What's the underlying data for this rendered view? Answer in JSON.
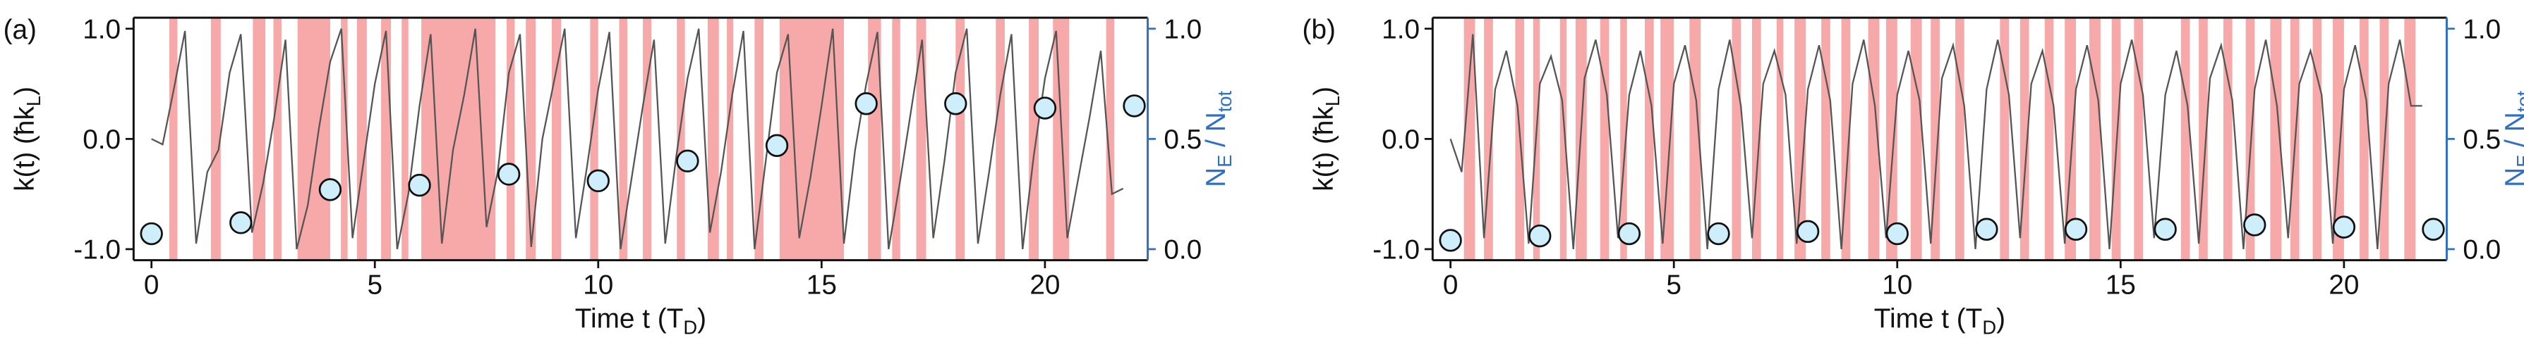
{
  "chart_data": [
    {
      "type": "line",
      "panel_label": "(a)",
      "xlabel": [
        "Time t (T",
        "D",
        ")"
      ],
      "ylabel": [
        "k(t) (ħk",
        "L",
        ")"
      ],
      "y2label": [
        "N",
        "E",
        " / N",
        "tot"
      ],
      "xlim": [
        -0.4,
        22.3
      ],
      "ylim": [
        -1.1,
        1.1
      ],
      "y2lim": [
        -0.05,
        1.05
      ],
      "xticks": [
        0,
        5,
        10,
        15,
        20
      ],
      "yticks": [
        {
          "value": -1,
          "label": "-1.0"
        },
        {
          "value": 0,
          "label": "0.0"
        },
        {
          "value": 1,
          "label": "1.0"
        }
      ],
      "y2ticks": [
        {
          "value": 0,
          "label": "0.0"
        },
        {
          "value": 0.5,
          "label": "0.5"
        },
        {
          "value": 1,
          "label": "1.0"
        }
      ],
      "y2color": "#2f6fc4",
      "shade_color": "#f7a8a8",
      "shaded_intervals": [
        [
          0.4,
          0.58
        ],
        [
          1.33,
          1.55
        ],
        [
          2.27,
          2.55
        ],
        [
          2.73,
          2.91
        ],
        [
          3.27,
          4.0
        ],
        [
          4.24,
          4.39
        ],
        [
          4.6,
          4.82
        ],
        [
          5.14,
          5.36
        ],
        [
          5.6,
          5.75
        ],
        [
          6.04,
          7.7
        ],
        [
          7.95,
          8.13
        ],
        [
          8.38,
          8.6
        ],
        [
          8.96,
          9.17
        ],
        [
          9.82,
          10.0
        ],
        [
          10.47,
          10.65
        ],
        [
          11.0,
          11.19
        ],
        [
          11.76,
          11.94
        ],
        [
          12.45,
          12.7
        ],
        [
          12.88,
          13.02
        ],
        [
          13.5,
          13.7
        ],
        [
          14.06,
          15.5
        ],
        [
          16.04,
          16.33
        ],
        [
          16.58,
          16.76
        ],
        [
          17.12,
          17.34
        ],
        [
          18.0,
          18.2
        ],
        [
          18.9,
          19.1
        ],
        [
          19.64,
          19.86
        ],
        [
          20.18,
          20.54
        ],
        [
          21.37,
          21.55
        ]
      ],
      "series": [
        {
          "type": "line",
          "color": "#555555",
          "x": [
            0,
            0.25,
            0.5,
            0.75,
            1,
            1.25,
            1.5,
            1.75,
            2,
            2.25,
            2.5,
            2.75,
            3,
            3.25,
            3.5,
            3.75,
            4,
            4.25,
            4.5,
            4.75,
            5,
            5.25,
            5.5,
            5.75,
            6,
            6.25,
            6.5,
            6.75,
            7,
            7.25,
            7.5,
            7.75,
            8,
            8.25,
            8.5,
            8.75,
            9,
            9.25,
            9.5,
            9.75,
            10,
            10.25,
            10.5,
            10.75,
            11,
            11.25,
            11.5,
            11.75,
            12,
            12.25,
            12.5,
            12.75,
            13,
            13.25,
            13.5,
            13.75,
            14,
            14.25,
            14.5,
            14.75,
            15,
            15.25,
            15.5,
            15.75,
            16,
            16.25,
            16.5,
            16.75,
            17,
            17.25,
            17.5,
            17.75,
            18,
            18.25,
            18.5,
            18.75,
            19,
            19.25,
            19.5,
            19.75,
            20,
            20.25,
            20.5,
            20.75,
            21,
            21.25,
            21.5,
            21.75
          ],
          "values": [
            0.0,
            -0.05,
            0.45,
            0.98,
            -0.95,
            -0.3,
            -0.1,
            0.6,
            0.95,
            -0.85,
            -0.4,
            0.2,
            0.9,
            -1.0,
            -0.6,
            0.1,
            0.7,
            1.0,
            -0.9,
            -0.2,
            0.5,
            0.98,
            -1.0,
            -0.5,
            0.3,
            0.95,
            -0.95,
            -0.1,
            0.4,
            1.0,
            -0.8,
            -0.3,
            0.6,
            0.95,
            -0.98,
            0.0,
            0.5,
            1.0,
            -0.9,
            -0.25,
            0.45,
            0.97,
            -1.0,
            -0.35,
            0.3,
            0.9,
            -0.95,
            -0.15,
            0.55,
            1.0,
            -0.85,
            -0.3,
            0.4,
            0.98,
            -1.0,
            -0.2,
            0.6,
            0.95,
            -0.9,
            -0.35,
            0.3,
            1.0,
            -0.95,
            -0.1,
            0.5,
            0.97,
            -1.0,
            -0.4,
            0.25,
            0.9,
            -0.9,
            -0.2,
            0.6,
            1.0,
            -0.95,
            -0.3,
            0.4,
            0.95,
            -1.0,
            -0.15,
            0.55,
            0.98,
            -0.9,
            -0.35,
            0.2,
            0.8,
            -0.5,
            -0.45
          ]
        },
        {
          "type": "scatter",
          "axis": "y2",
          "color": "#cdeefa",
          "x": [
            0,
            2,
            4,
            6,
            8,
            10,
            12,
            14,
            16,
            18,
            20,
            22
          ],
          "values": [
            0.07,
            0.12,
            0.27,
            0.29,
            0.34,
            0.31,
            0.4,
            0.47,
            0.66,
            0.66,
            0.64,
            0.65
          ]
        }
      ]
    },
    {
      "type": "line",
      "panel_label": "(b)",
      "xlabel": [
        "Time t (T",
        "D",
        ")"
      ],
      "ylabel": [
        "k(t) (ħk",
        "L",
        ")"
      ],
      "y2label": [
        "N",
        "E",
        " / N",
        "tot"
      ],
      "xlim": [
        -0.4,
        22.3
      ],
      "ylim": [
        -1.1,
        1.1
      ],
      "y2lim": [
        -0.05,
        1.05
      ],
      "xticks": [
        0,
        5,
        10,
        15,
        20
      ],
      "yticks": [
        {
          "value": -1,
          "label": "-1.0"
        },
        {
          "value": 0,
          "label": "0.0"
        },
        {
          "value": 1,
          "label": "1.0"
        }
      ],
      "y2ticks": [
        {
          "value": 0,
          "label": "0.0"
        },
        {
          "value": 0.5,
          "label": "0.5"
        },
        {
          "value": 1,
          "label": "1.0"
        }
      ],
      "y2color": "#2f6fc4",
      "shade_color": "#f7a8a8",
      "shaded_intervals": [
        [
          0.3,
          0.55
        ],
        [
          0.75,
          0.95
        ],
        [
          1.45,
          1.65
        ],
        [
          1.85,
          2.0
        ],
        [
          2.45,
          2.6
        ],
        [
          2.8,
          3.05
        ],
        [
          3.35,
          3.55
        ],
        [
          3.8,
          3.95
        ],
        [
          4.35,
          4.55
        ],
        [
          4.7,
          5.0
        ],
        [
          5.35,
          5.6
        ],
        [
          6.3,
          6.5
        ],
        [
          6.75,
          6.95
        ],
        [
          7.3,
          7.45
        ],
        [
          7.7,
          7.95
        ],
        [
          8.3,
          8.5
        ],
        [
          8.75,
          8.95
        ],
        [
          9.35,
          9.6
        ],
        [
          9.75,
          10.0
        ],
        [
          10.3,
          10.55
        ],
        [
          10.75,
          10.95
        ],
        [
          11.3,
          11.5
        ],
        [
          12.3,
          12.5
        ],
        [
          12.75,
          12.95
        ],
        [
          13.3,
          13.5
        ],
        [
          13.75,
          14.0
        ],
        [
          14.3,
          14.55
        ],
        [
          14.8,
          15.0
        ],
        [
          15.3,
          15.5
        ],
        [
          16.35,
          16.55
        ],
        [
          16.75,
          16.95
        ],
        [
          17.3,
          17.5
        ],
        [
          17.8,
          18.0
        ],
        [
          18.35,
          18.6
        ],
        [
          18.8,
          19.0
        ],
        [
          19.3,
          19.5
        ],
        [
          19.75,
          20.0
        ],
        [
          20.35,
          20.55
        ],
        [
          20.8,
          21.0
        ],
        [
          21.35,
          21.6
        ]
      ],
      "series": [
        {
          "type": "line",
          "color": "#555555",
          "x": [
            0,
            0.25,
            0.5,
            0.75,
            1,
            1.25,
            1.5,
            1.75,
            2,
            2.25,
            2.5,
            2.75,
            3,
            3.25,
            3.5,
            3.75,
            4,
            4.25,
            4.5,
            4.75,
            5,
            5.25,
            5.5,
            5.75,
            6,
            6.25,
            6.5,
            6.75,
            7,
            7.25,
            7.5,
            7.75,
            8,
            8.25,
            8.5,
            8.75,
            9,
            9.25,
            9.5,
            9.75,
            10,
            10.25,
            10.5,
            10.75,
            11,
            11.25,
            11.5,
            11.75,
            12,
            12.25,
            12.5,
            12.75,
            13,
            13.25,
            13.5,
            13.75,
            14,
            14.25,
            14.5,
            14.75,
            15,
            15.25,
            15.5,
            15.75,
            16,
            16.25,
            16.5,
            16.75,
            17,
            17.25,
            17.5,
            17.75,
            18,
            18.25,
            18.5,
            18.75,
            19,
            19.25,
            19.5,
            19.75,
            20,
            20.25,
            20.5,
            20.75,
            21,
            21.25,
            21.5,
            21.75
          ],
          "values": [
            0.0,
            -0.3,
            0.95,
            -0.9,
            0.45,
            0.8,
            0.3,
            -0.95,
            0.5,
            0.75,
            0.35,
            -1.0,
            0.55,
            0.9,
            0.4,
            -0.9,
            0.4,
            0.8,
            0.3,
            -0.95,
            0.5,
            0.85,
            0.35,
            -1.0,
            0.45,
            0.9,
            0.3,
            -0.9,
            0.5,
            0.8,
            0.4,
            -0.95,
            0.45,
            0.85,
            0.35,
            -1.0,
            0.5,
            0.9,
            0.3,
            -0.9,
            0.4,
            0.8,
            0.35,
            -0.95,
            0.55,
            0.85,
            0.3,
            -1.0,
            0.45,
            0.9,
            0.4,
            -0.9,
            0.5,
            0.8,
            0.3,
            -0.95,
            0.45,
            0.85,
            0.35,
            -1.0,
            0.5,
            0.9,
            0.4,
            -0.9,
            0.4,
            0.8,
            0.3,
            -0.95,
            0.55,
            0.85,
            0.35,
            -1.0,
            0.45,
            0.9,
            0.3,
            -0.9,
            0.5,
            0.8,
            0.4,
            -0.95,
            0.45,
            0.85,
            0.35,
            -1.0,
            0.5,
            0.9,
            0.3,
            0.3
          ]
        },
        {
          "type": "scatter",
          "axis": "y2",
          "color": "#cdeefa",
          "x": [
            0,
            2,
            4,
            6,
            8,
            10,
            12,
            14,
            16,
            18,
            20,
            22
          ],
          "values": [
            0.04,
            0.06,
            0.07,
            0.07,
            0.08,
            0.07,
            0.09,
            0.09,
            0.09,
            0.11,
            0.1,
            0.09
          ]
        }
      ]
    }
  ]
}
